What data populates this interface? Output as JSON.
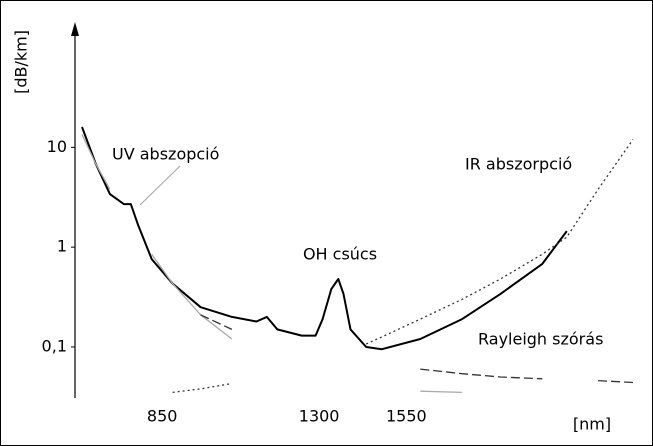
{
  "chart_data": {
    "type": "line",
    "yscale": "log",
    "ylabel": "[dB/km]",
    "xlabel": "[nm]",
    "xlim": [
      600,
      2220
    ],
    "ylim": [
      0.033,
      150
    ],
    "xticks": [
      850,
      1300,
      1550
    ],
    "yticks": [
      {
        "value": 0.1,
        "label": "0,1"
      },
      1,
      10
    ],
    "x": [
      620,
      660,
      700,
      740,
      760,
      780,
      820,
      880,
      960,
      1050,
      1120,
      1150,
      1180,
      1250,
      1290,
      1310,
      1335,
      1355,
      1370,
      1390,
      1435,
      1480,
      1590,
      1710,
      1820,
      1940,
      2010,
      2100,
      2200
    ],
    "annotations": [
      "OH csúcs"
    ],
    "series": [
      {
        "color": "#000000",
        "style": "solid",
        "width": 2,
        "values": [
          16,
          6.8,
          3.4,
          2.7,
          2.7,
          1.7,
          0.76,
          0.43,
          0.25,
          0.2,
          0.18,
          0.2,
          0.15,
          0.13,
          0.13,
          0.19,
          0.38,
          0.48,
          0.34,
          0.15,
          0.1,
          0.095,
          0.12,
          0.19,
          0.34,
          0.68,
          1.45,
          null,
          null
        ]
      },
      {
        "name": "UV abszopció",
        "color": "#aaaaaa",
        "style": "solid",
        "width": 1.3,
        "values": [
          13.5,
          6.8,
          3.8,
          null,
          1.9,
          null,
          0.85,
          0.43,
          0.21,
          0.12,
          null,
          0.08,
          null,
          0.06,
          null,
          null,
          0.05,
          null,
          null,
          null,
          0.043,
          null,
          0.036,
          0.035,
          null,
          null,
          null,
          null,
          null
        ]
      },
      {
        "name": "Rayleigh szórás",
        "color": "#333333",
        "style": "dash",
        "width": 1.3,
        "values": [
          1.6,
          null,
          1.07,
          null,
          null,
          null,
          0.46,
          null,
          0.21,
          0.15,
          null,
          0.115,
          null,
          0.09,
          null,
          null,
          0.08,
          null,
          null,
          null,
          0.072,
          null,
          0.06,
          0.054,
          0.05,
          0.048,
          null,
          0.046,
          0.044
        ]
      },
      {
        "name": "IR abszorpció",
        "color": "#333333",
        "style": "dot",
        "width": 1.3,
        "values": [
          null,
          null,
          null,
          null,
          null,
          null,
          null,
          0.035,
          0.038,
          0.043,
          null,
          0.05,
          null,
          0.06,
          null,
          null,
          0.076,
          null,
          null,
          null,
          0.107,
          0.126,
          0.19,
          0.3,
          0.48,
          0.85,
          1.26,
          3.8,
          12
        ]
      }
    ]
  }
}
